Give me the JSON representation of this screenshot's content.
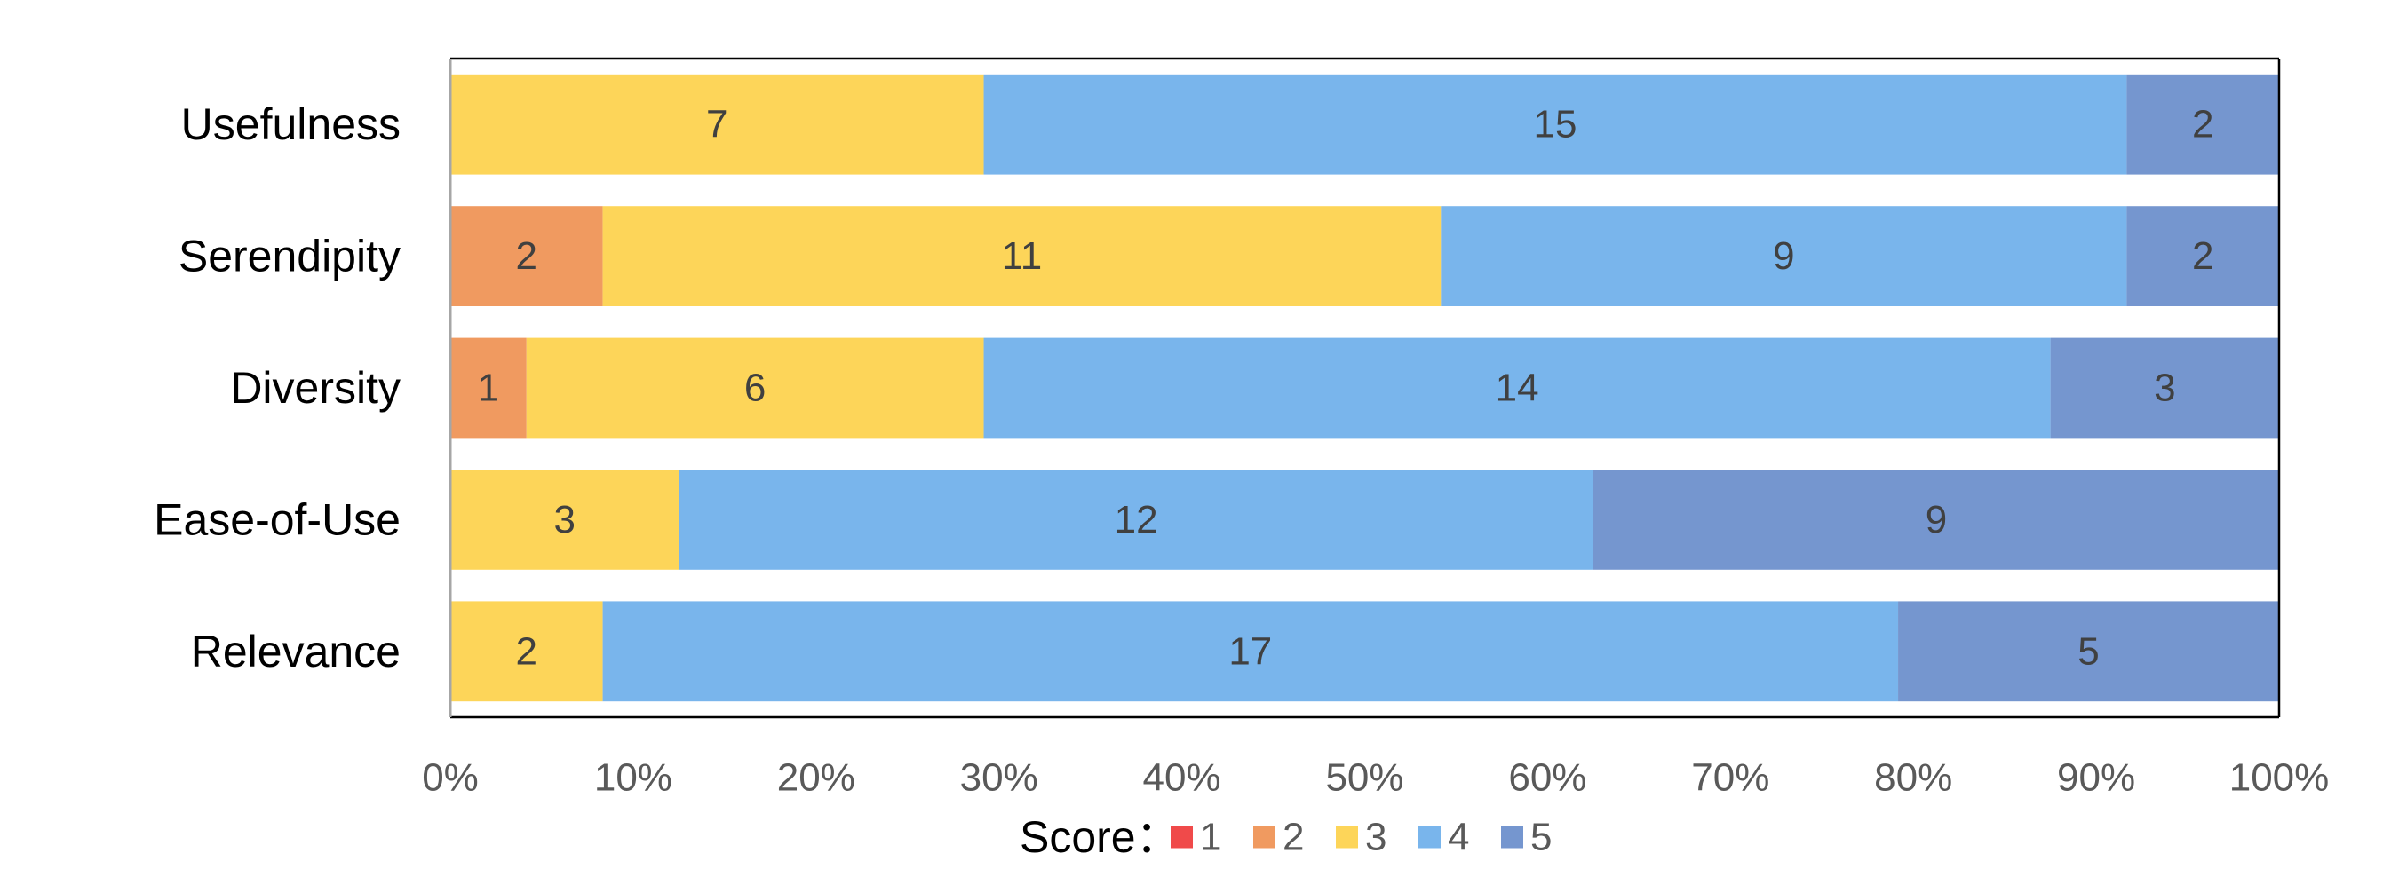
{
  "chart_data": {
    "type": "bar",
    "orientation": "horizontal",
    "stacked": true,
    "normalized_percent": true,
    "categories": [
      "Usefulness",
      "Serendipity",
      "Diversity",
      "Ease-of-Use",
      "Relevance"
    ],
    "series": [
      {
        "name": "1",
        "color": "#F04A4A",
        "values": [
          0,
          0,
          0,
          0,
          0
        ]
      },
      {
        "name": "2",
        "color": "#F09A60",
        "values": [
          0,
          2,
          1,
          0,
          0
        ]
      },
      {
        "name": "3",
        "color": "#FDD559",
        "values": [
          7,
          11,
          6,
          3,
          2
        ]
      },
      {
        "name": "4",
        "color": "#79B5EC",
        "values": [
          15,
          9,
          14,
          12,
          17
        ]
      },
      {
        "name": "5",
        "color": "#7596CF",
        "values": [
          2,
          2,
          3,
          9,
          5
        ]
      }
    ],
    "x_ticks": [
      "0%",
      "10%",
      "20%",
      "30%",
      "40%",
      "50%",
      "60%",
      "70%",
      "80%",
      "90%",
      "100%"
    ],
    "xlim": [
      0,
      100
    ],
    "grid": false,
    "legend": {
      "title": "Score：",
      "position": "bottom"
    }
  }
}
